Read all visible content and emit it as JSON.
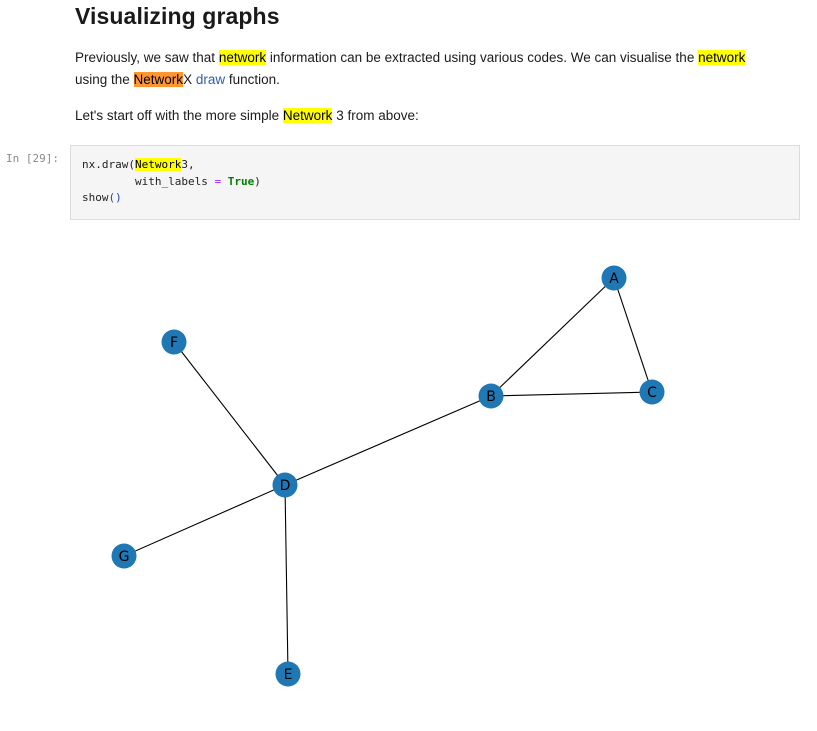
{
  "heading": "Visualizing graphs",
  "paragraph1": {
    "t1": "Previously, we saw that ",
    "hl1": "network",
    "t2": " information can be extracted using various codes. We can visualise the ",
    "hl2": "network",
    "t3": " using the ",
    "hl3": "Network",
    "t4": "X ",
    "link": "draw",
    "t5": " function."
  },
  "paragraph2": {
    "t1": "Let's start off with the more simple ",
    "hl": "Network",
    "t2": " 3 from above:"
  },
  "cell": {
    "prompt": "In [29]:",
    "code": {
      "l1_a": "nx.draw(",
      "l1_hl": "Network",
      "l1_b": "3,",
      "l2_indent": "        with_labels ",
      "l2_op": "=",
      "l2_sp": " ",
      "l2_kw": "True",
      "l2_close": ")",
      "l3_a": "show",
      "l3_paren": "()"
    }
  },
  "graph": {
    "node_color": "#1f77b4",
    "edge_color": "#000000",
    "nodes": [
      {
        "id": "A",
        "label": "A"
      },
      {
        "id": "B",
        "label": "B"
      },
      {
        "id": "C",
        "label": "C"
      },
      {
        "id": "D",
        "label": "D"
      },
      {
        "id": "E",
        "label": "E"
      },
      {
        "id": "F",
        "label": "F"
      },
      {
        "id": "G",
        "label": "G"
      }
    ],
    "edges": [
      [
        "A",
        "B"
      ],
      [
        "A",
        "C"
      ],
      [
        "B",
        "C"
      ],
      [
        "B",
        "D"
      ],
      [
        "D",
        "F"
      ],
      [
        "D",
        "G"
      ],
      [
        "D",
        "E"
      ]
    ]
  }
}
